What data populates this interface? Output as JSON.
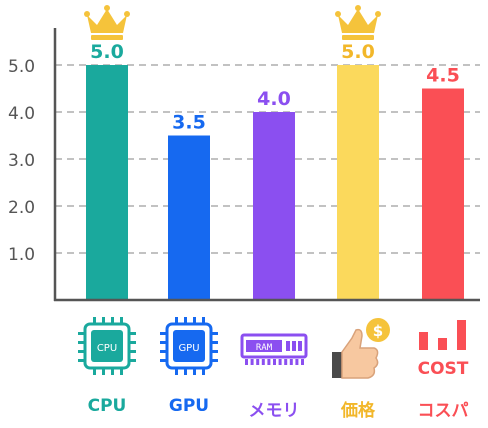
{
  "chart_data": {
    "type": "bar",
    "categories": [
      "CPU",
      "GPU",
      "メモリ",
      "価格",
      "コスパ"
    ],
    "values": [
      5.0,
      3.5,
      4.0,
      5.0,
      4.5
    ],
    "value_labels": [
      "5.0",
      "3.5",
      "4.0",
      "5.0",
      "4.5"
    ],
    "yticks": [
      "1.0",
      "2.0",
      "3.0",
      "4.0",
      "5.0"
    ],
    "ylim": [
      0,
      5.5
    ],
    "grid": true,
    "colors": [
      "#1aa99d",
      "#1669f0",
      "#8b4ff0",
      "#fbd95c",
      "#fa4f55"
    ],
    "label_colors": [
      "#1aa99d",
      "#1669f0",
      "#8b4ff0",
      "#f2b72a",
      "#fa4f55"
    ],
    "crowned": [
      true,
      false,
      false,
      true,
      false
    ],
    "crown_color": "#f5c33b",
    "icons": [
      "cpu-chip-icon",
      "gpu-chip-icon",
      "ram-module-icon",
      "thumbs-up-coin-icon",
      "cost-bars-icon"
    ],
    "icon_texts": [
      "CPU",
      "GPU",
      "RAM",
      "$",
      "COST"
    ]
  }
}
